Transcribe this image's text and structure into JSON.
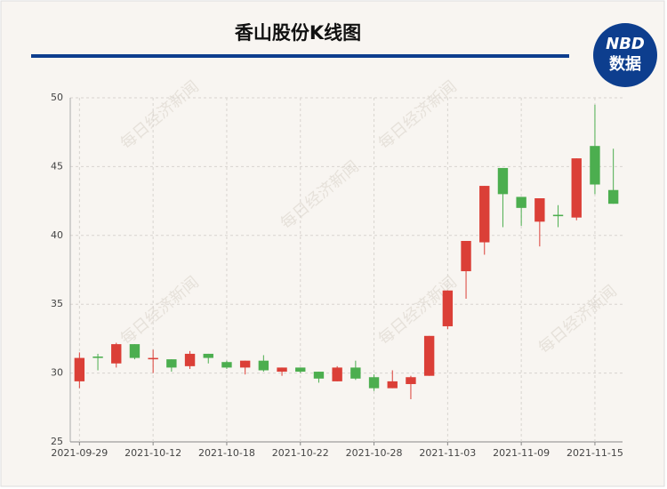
{
  "chart_data": {
    "type": "candlestick",
    "title": "香山股份K线图",
    "logo": [
      "NBD",
      "数据"
    ],
    "watermark": "每日经济新闻",
    "categories": [
      "2021-09-29",
      null,
      null,
      null,
      "2021-10-12",
      null,
      null,
      null,
      "2021-10-18",
      null,
      null,
      null,
      "2021-10-22",
      null,
      null,
      null,
      "2021-10-28",
      null,
      null,
      null,
      "2021-11-03",
      null,
      null,
      null,
      "2021-11-09",
      null,
      null,
      null,
      "2021-11-15",
      null
    ],
    "open": [
      29.4,
      31.2,
      30.7,
      32.1,
      31.0,
      31.0,
      30.5,
      31.4,
      30.8,
      30.4,
      30.9,
      30.1,
      30.4,
      30.1,
      29.4,
      30.4,
      29.7,
      28.9,
      29.2,
      29.8,
      33.4,
      37.4,
      39.5,
      44.9,
      42.8,
      41.0,
      41.5,
      41.3,
      46.5,
      43.3
    ],
    "close": [
      31.1,
      31.1,
      32.1,
      31.1,
      31.1,
      30.4,
      31.4,
      31.1,
      30.4,
      30.9,
      30.2,
      30.4,
      30.1,
      29.6,
      30.4,
      29.6,
      28.9,
      29.4,
      29.7,
      32.7,
      36.0,
      39.6,
      43.6,
      43.0,
      42.0,
      42.7,
      41.4,
      45.6,
      43.7,
      42.3
    ],
    "low": [
      28.9,
      30.2,
      30.4,
      31.0,
      30.0,
      30.1,
      30.3,
      30.7,
      30.3,
      29.9,
      30.1,
      29.8,
      30.0,
      29.3,
      29.4,
      29.5,
      28.7,
      28.9,
      28.1,
      29.8,
      33.2,
      35.4,
      38.6,
      40.6,
      40.7,
      39.2,
      40.6,
      41.1,
      43.0,
      42.3
    ],
    "high": [
      31.5,
      31.4,
      32.2,
      32.1,
      31.7,
      31.0,
      31.6,
      31.4,
      30.9,
      30.9,
      31.3,
      30.4,
      30.4,
      30.1,
      30.5,
      30.9,
      29.9,
      30.2,
      29.8,
      32.7,
      36.0,
      39.6,
      43.6,
      44.9,
      42.8,
      42.7,
      42.2,
      45.6,
      49.5,
      46.3
    ],
    "up_color": "#db3f37",
    "down_color": "#4cae4f",
    "ylim": [
      25,
      50
    ],
    "yticks": [
      25,
      30,
      35,
      40,
      45,
      50
    ],
    "grid": true
  }
}
